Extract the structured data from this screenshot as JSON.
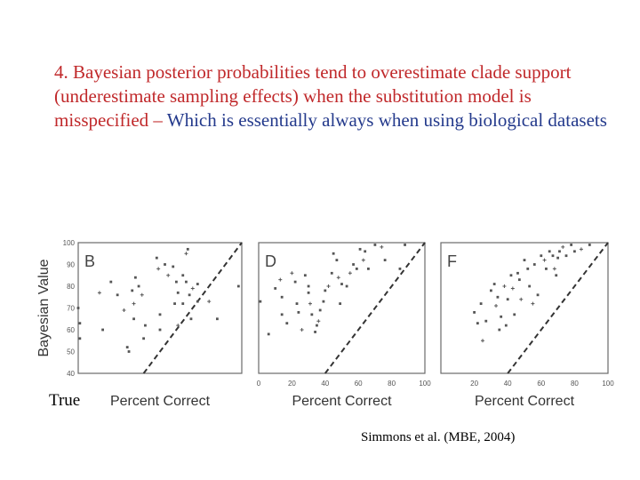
{
  "slide": {
    "text_red": "4. Bayesian posterior probabilities tend to overestimate clade support (underestimate sampling effects) when the substitution model is misspecified – ",
    "text_blue": "Which is essentially always when using biological datasets",
    "true_label": "True",
    "citation": "Simmons et al. (MBE, 2004)"
  },
  "chart_data": [
    {
      "type": "scatter",
      "panel_label": "B",
      "xlabel": "Percent Correct",
      "ylabel": "Bayesian Value",
      "xlim": [
        0,
        100
      ],
      "ylim": [
        40,
        100
      ],
      "x_ticks": [],
      "y_ticks": [
        40,
        50,
        60,
        70,
        80,
        90,
        100
      ],
      "reference_line": [
        [
          40,
          40
        ],
        [
          100,
          100
        ]
      ],
      "points": [
        [
          0,
          70
        ],
        [
          1,
          63
        ],
        [
          1,
          56
        ],
        [
          13,
          77
        ],
        [
          15,
          60
        ],
        [
          20,
          82
        ],
        [
          24,
          76
        ],
        [
          28,
          69
        ],
        [
          30,
          52
        ],
        [
          31,
          50
        ],
        [
          33,
          78
        ],
        [
          34,
          72
        ],
        [
          34,
          65
        ],
        [
          35,
          84
        ],
        [
          37,
          80
        ],
        [
          39,
          76
        ],
        [
          40,
          56
        ],
        [
          41,
          62
        ],
        [
          48,
          93
        ],
        [
          49,
          88
        ],
        [
          50,
          67
        ],
        [
          50,
          60
        ],
        [
          53,
          90
        ],
        [
          55,
          85
        ],
        [
          58,
          89
        ],
        [
          60,
          82
        ],
        [
          59,
          72
        ],
        [
          61,
          62
        ],
        [
          61,
          77
        ],
        [
          64,
          85
        ],
        [
          64,
          72
        ],
        [
          66,
          95
        ],
        [
          67,
          97
        ],
        [
          66,
          82
        ],
        [
          68,
          76
        ],
        [
          70,
          79
        ],
        [
          69,
          65
        ],
        [
          73,
          81
        ],
        [
          73,
          73
        ],
        [
          80,
          73
        ],
        [
          85,
          65
        ],
        [
          98,
          80
        ]
      ]
    },
    {
      "type": "scatter",
      "panel_label": "D",
      "xlabel": "Percent Correct",
      "ylabel": "",
      "xlim": [
        0,
        100
      ],
      "ylim": [
        40,
        100
      ],
      "x_ticks": [
        0,
        20,
        40,
        60,
        80,
        100
      ],
      "y_ticks": [],
      "reference_line": [
        [
          40,
          40
        ],
        [
          100,
          100
        ]
      ],
      "points": [
        [
          1,
          73
        ],
        [
          6,
          58
        ],
        [
          10,
          79
        ],
        [
          13,
          83
        ],
        [
          14,
          75
        ],
        [
          14,
          67
        ],
        [
          17,
          63
        ],
        [
          20,
          86
        ],
        [
          22,
          82
        ],
        [
          23,
          72
        ],
        [
          24,
          68
        ],
        [
          26,
          60
        ],
        [
          28,
          85
        ],
        [
          30,
          80
        ],
        [
          30,
          77
        ],
        [
          31,
          72
        ],
        [
          32,
          67
        ],
        [
          34,
          59
        ],
        [
          35,
          62
        ],
        [
          36,
          64
        ],
        [
          37,
          69
        ],
        [
          39,
          73
        ],
        [
          40,
          78
        ],
        [
          42,
          80
        ],
        [
          44,
          86
        ],
        [
          45,
          95
        ],
        [
          47,
          92
        ],
        [
          48,
          84
        ],
        [
          49,
          72
        ],
        [
          50,
          81
        ],
        [
          53,
          80
        ],
        [
          55,
          86
        ],
        [
          57,
          90
        ],
        [
          59,
          88
        ],
        [
          61,
          97
        ],
        [
          63,
          92
        ],
        [
          64,
          96
        ],
        [
          66,
          88
        ],
        [
          70,
          99
        ],
        [
          74,
          98
        ],
        [
          76,
          92
        ],
        [
          85,
          88
        ],
        [
          88,
          99
        ]
      ]
    },
    {
      "type": "scatter",
      "panel_label": "F",
      "xlabel": "Percent Correct",
      "ylabel": "",
      "xlim": [
        0,
        100
      ],
      "ylim": [
        40,
        100
      ],
      "x_ticks": [
        20,
        40,
        60,
        80,
        100
      ],
      "y_ticks": [],
      "reference_line": [
        [
          40,
          40
        ],
        [
          100,
          100
        ]
      ],
      "points": [
        [
          20,
          68
        ],
        [
          22,
          63
        ],
        [
          24,
          72
        ],
        [
          25,
          55
        ],
        [
          27,
          64
        ],
        [
          30,
          78
        ],
        [
          32,
          81
        ],
        [
          33,
          71
        ],
        [
          34,
          75
        ],
        [
          35,
          60
        ],
        [
          36,
          66
        ],
        [
          38,
          80
        ],
        [
          39,
          62
        ],
        [
          40,
          74
        ],
        [
          42,
          85
        ],
        [
          43,
          79
        ],
        [
          44,
          67
        ],
        [
          46,
          86
        ],
        [
          47,
          83
        ],
        [
          48,
          74
        ],
        [
          50,
          92
        ],
        [
          52,
          88
        ],
        [
          53,
          80
        ],
        [
          55,
          72
        ],
        [
          56,
          90
        ],
        [
          58,
          76
        ],
        [
          60,
          94
        ],
        [
          62,
          92
        ],
        [
          63,
          88
        ],
        [
          65,
          96
        ],
        [
          67,
          94
        ],
        [
          68,
          88
        ],
        [
          69,
          85
        ],
        [
          70,
          93
        ],
        [
          71,
          96
        ],
        [
          73,
          98
        ],
        [
          75,
          94
        ],
        [
          78,
          99
        ],
        [
          80,
          96
        ],
        [
          84,
          97
        ],
        [
          89,
          99
        ]
      ]
    }
  ]
}
